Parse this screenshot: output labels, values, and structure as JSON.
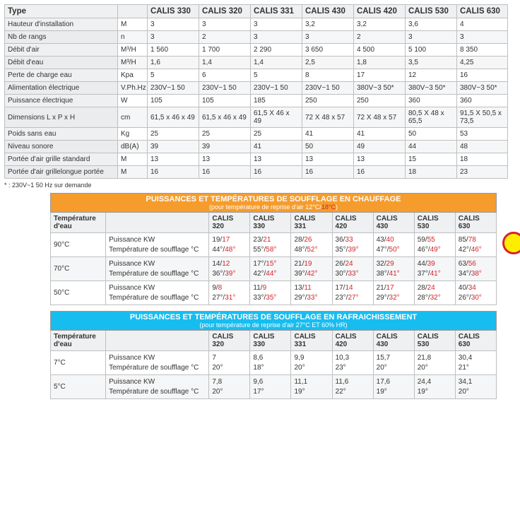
{
  "spec": {
    "header": [
      "Type",
      "",
      "CALIS 330",
      "CALIS 320",
      "CALIS 331",
      "CALIS 430",
      "CALIS 420",
      "CALIS 530",
      "CALIS 630"
    ],
    "widths": [
      160,
      42,
      73,
      73,
      73,
      73,
      73,
      73,
      72
    ],
    "rows": [
      {
        "c": [
          "Hauteur d'installation",
          "M",
          "3",
          "3",
          "3",
          "3,2",
          "3,2",
          "3,6",
          "4"
        ]
      },
      {
        "c": [
          "Nb de rangs",
          "n",
          "3",
          "2",
          "3",
          "3",
          "2",
          "3",
          "3"
        ],
        "alt": true
      },
      {
        "c": [
          "Débit d'air",
          "M³/H",
          "1 560",
          "1 700",
          "2 290",
          "3 650",
          "4 500",
          "5 100",
          "8 350"
        ]
      },
      {
        "c": [
          "Débit d'eau",
          "M³/H",
          "1,6",
          "1,4",
          "1,4",
          "2,5",
          "1,8",
          "3,5",
          "4,25"
        ],
        "alt": true
      },
      {
        "c": [
          "Perte de charge eau",
          "Kpa",
          "5",
          "6",
          "5",
          "8",
          "17",
          "12",
          "16"
        ]
      },
      {
        "c": [
          "Alimentation électrique",
          "V.Ph.Hz",
          "230V~1 50",
          "230V~1 50",
          "230V~1 50",
          "230V~1 50",
          "380V~3 50*",
          "380V~3 50*",
          "380V~3 50*"
        ],
        "alt": true
      },
      {
        "c": [
          "Puissance électrique",
          "W",
          "105",
          "105",
          "185",
          "250",
          "250",
          "360",
          "360"
        ]
      },
      {
        "c": [
          "Dimensions L x P x H",
          "cm",
          "61,5 x 46 x 49",
          "61,5 x 46 x 49",
          "61,5 X 46 x 49",
          "72 X 48 x 57",
          "72 X 48 x 57",
          "80,5 X 48 x 65,5",
          "91,5 X 50,5 x 73,5"
        ],
        "alt": true
      },
      {
        "c": [
          "Poids sans eau",
          "Kg",
          "25",
          "25",
          "25",
          "41",
          "41",
          "50",
          "53"
        ]
      },
      {
        "c": [
          "Niveau sonore",
          "dB(A)",
          "39",
          "39",
          "41",
          "50",
          "49",
          "44",
          "48"
        ],
        "alt": true
      },
      {
        "c": [
          "Portée d'air grille standard",
          "M",
          "13",
          "13",
          "13",
          "13",
          "13",
          "15",
          "18"
        ]
      },
      {
        "c": [
          "Portée d'air grillelongue portée",
          "M",
          "16",
          "16",
          "16",
          "16",
          "16",
          "18",
          "23"
        ],
        "alt": true
      }
    ],
    "note": "* : 230V~1 50 Hz sur demande"
  },
  "perfColWidths": [
    78,
    146,
    58,
    58,
    58,
    58,
    58,
    58,
    58
  ],
  "perfHeader": [
    "Température d'eau",
    "",
    "CALIS 320",
    "CALIS 330",
    "CALIS 331",
    "CALIS 420",
    "CALIS 430",
    "CALIS 530",
    "CALIS 630"
  ],
  "heating": {
    "title1": "PUISSANCES ET TEMPÉRATURES DE SOUFFLAGE EN CHAUFFAGE",
    "title2a": "(pour température de reprise d'air 12°C/",
    "title2b": "18°C",
    "title2c": ")",
    "rows": [
      {
        "temp": "90°C",
        "p": [
          [
            "19",
            "17"
          ],
          [
            "23",
            "21"
          ],
          [
            "28",
            "26"
          ],
          [
            "36",
            "33"
          ],
          [
            "43",
            "40"
          ],
          [
            "59",
            "55"
          ],
          [
            "85",
            "78"
          ]
        ],
        "s": [
          [
            "44°",
            "48°"
          ],
          [
            "55°",
            "58°"
          ],
          [
            "48°",
            "52°"
          ],
          [
            "35°",
            "39°"
          ],
          [
            "47°",
            "50°"
          ],
          [
            "46°",
            "49°"
          ],
          [
            "42°",
            "46°"
          ]
        ]
      },
      {
        "temp": "70°C",
        "alt": true,
        "p": [
          [
            "14",
            "12"
          ],
          [
            "17°",
            "15°"
          ],
          [
            "21",
            "19"
          ],
          [
            "26",
            "24"
          ],
          [
            "32",
            "29"
          ],
          [
            "44",
            "39"
          ],
          [
            "63",
            "56"
          ]
        ],
        "s": [
          [
            "36°",
            "39°"
          ],
          [
            "42°",
            "44°"
          ],
          [
            "39°",
            "42°"
          ],
          [
            "30°",
            "33°"
          ],
          [
            "38°",
            "41°"
          ],
          [
            "37°",
            "41°"
          ],
          [
            "34°",
            "38°"
          ]
        ]
      },
      {
        "temp": "50°C",
        "p": [
          [
            "9",
            "8"
          ],
          [
            "11",
            "9"
          ],
          [
            "13",
            "11"
          ],
          [
            "17",
            "14"
          ],
          [
            "21",
            "17"
          ],
          [
            "28",
            "24"
          ],
          [
            "40",
            "34"
          ]
        ],
        "s": [
          [
            "27°",
            "31°"
          ],
          [
            "33°",
            "35°"
          ],
          [
            "29°",
            "33°"
          ],
          [
            "23°",
            "27°"
          ],
          [
            "29°",
            "32°"
          ],
          [
            "28°",
            "32°"
          ],
          [
            "26°",
            "30°"
          ]
        ]
      }
    ]
  },
  "cooling": {
    "title1": "PUISSANCES ET TEMPÉRATURES DE SOUFFLAGE EN RAFRAICHISSEMENT",
    "title2": "(pour température de reprise d'air 27°C ET 60% HR)",
    "rows": [
      {
        "temp": "7°C",
        "p": [
          "7",
          "8,6",
          "9,9",
          "10,3",
          "15,7",
          "21,8",
          "30,4"
        ],
        "s": [
          "20°",
          "18°",
          "20°",
          "23°",
          "20°",
          "20°",
          "21°"
        ]
      },
      {
        "temp": "5°C",
        "alt": true,
        "p": [
          "7,8",
          "9,6",
          "11,1",
          "11,6",
          "17,6",
          "24,4",
          "34,1"
        ],
        "s": [
          "20°",
          "17°",
          "19°",
          "22°",
          "19°",
          "19°",
          "20°"
        ]
      }
    ],
    "rowLabels": {
      "p": "Puissance KW",
      "s": "Température de soufflage °C"
    }
  },
  "heatingRowLabels": {
    "p": "Puissance KW",
    "s": "Température de soufflage °C"
  }
}
